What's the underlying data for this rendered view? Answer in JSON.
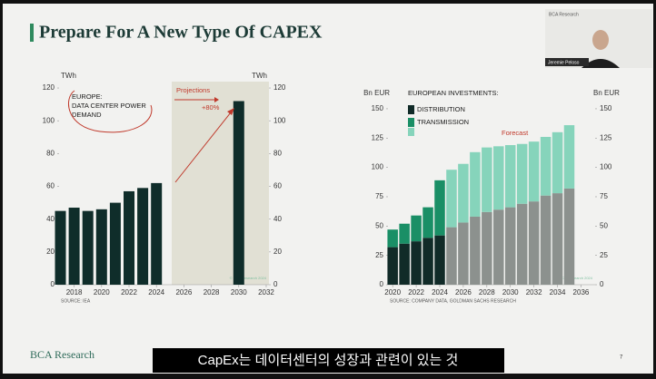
{
  "slide": {
    "title": "Prepare For A New Type Of CAPEX",
    "brand": "BCA Research",
    "page": "7",
    "caption": "CapEx는 데이터센터의 성장과 관련이 있는 것",
    "webcam": {
      "brand": "BCA Research",
      "name": "Jeremie Peloso"
    }
  },
  "chart_data": [
    {
      "type": "bar",
      "title": [
        "EUROPE:",
        "DATA CENTER POWER",
        "DEMAND"
      ],
      "ylabel": "TWh",
      "y2label": "TWh",
      "annotations": [
        "Projections",
        "+80%"
      ],
      "source": "SOURCE: IEA",
      "watermark": "© BCA Research 2024",
      "x": [
        2017,
        2018,
        2019,
        2020,
        2021,
        2022,
        2023,
        2024,
        2030
      ],
      "values": [
        45,
        47,
        45,
        46,
        50,
        57,
        59,
        62,
        112
      ],
      "color": "#0f2d2a",
      "xlim": [
        2016.9,
        2032.2
      ],
      "xticks": [
        2018,
        2020,
        2022,
        2024,
        2026,
        2028,
        2030,
        2032
      ],
      "ylim": [
        0,
        125
      ],
      "yticks": [
        0,
        20,
        40,
        60,
        80,
        100,
        120
      ],
      "y2lim": [
        0,
        125
      ],
      "y2ticks": [
        0,
        20,
        40,
        60,
        80,
        100,
        120
      ]
    },
    {
      "type": "stacked_bar",
      "legend_title": "EUROPEAN INVESTMENTS:",
      "ylabel": "Bn EUR",
      "y2label": "Bn EUR",
      "annotations": [
        "Forecast"
      ],
      "source": "SOURCE: COMPANY DATA, GOLDMAN SACHS RESEARCH",
      "watermark": "© BCA Research 2024",
      "x": [
        2020,
        2021,
        2022,
        2023,
        2024,
        2025,
        2026,
        2027,
        2028,
        2029,
        2030,
        2031,
        2032,
        2033,
        2034,
        2035
      ],
      "series": [
        {
          "name": "DISTRIBUTION",
          "values": [
            32,
            35,
            37,
            40,
            42,
            49,
            53,
            58,
            62,
            64,
            66,
            69,
            71,
            76,
            78,
            82
          ],
          "colors": [
            "#112b28",
            "#112b28",
            "#112b28",
            "#112b28",
            "#112b28",
            "#8c918e",
            "#8c918e",
            "#8c918e",
            "#8c918e",
            "#8c918e",
            "#8c918e",
            "#8c918e",
            "#8c918e",
            "#8c918e",
            "#8c918e",
            "#8c918e"
          ]
        },
        {
          "name": "TRANSMISSION",
          "values": [
            15,
            17,
            22,
            26,
            47,
            49,
            50,
            55,
            55,
            54,
            53,
            51,
            51,
            50,
            52,
            54
          ],
          "colors": [
            "#1a8f66",
            "#1a8f66",
            "#1a8f66",
            "#1a8f66",
            "#1a8f66",
            "#86d4bb",
            "#86d4bb",
            "#86d4bb",
            "#86d4bb",
            "#86d4bb",
            "#86d4bb",
            "#86d4bb",
            "#86d4bb",
            "#86d4bb",
            "#86d4bb",
            "#86d4bb"
          ]
        }
      ],
      "xlim": [
        2019.6,
        2037.2
      ],
      "xticks": [
        2020,
        2022,
        2024,
        2026,
        2028,
        2030,
        2032,
        2034,
        2036
      ],
      "ylim": [
        0,
        160
      ],
      "yticks": [
        0,
        25,
        50,
        75,
        100,
        125,
        150
      ],
      "y2lim": [
        0,
        160
      ],
      "y2ticks": [
        0,
        25,
        50,
        75,
        100,
        125,
        150
      ]
    }
  ]
}
